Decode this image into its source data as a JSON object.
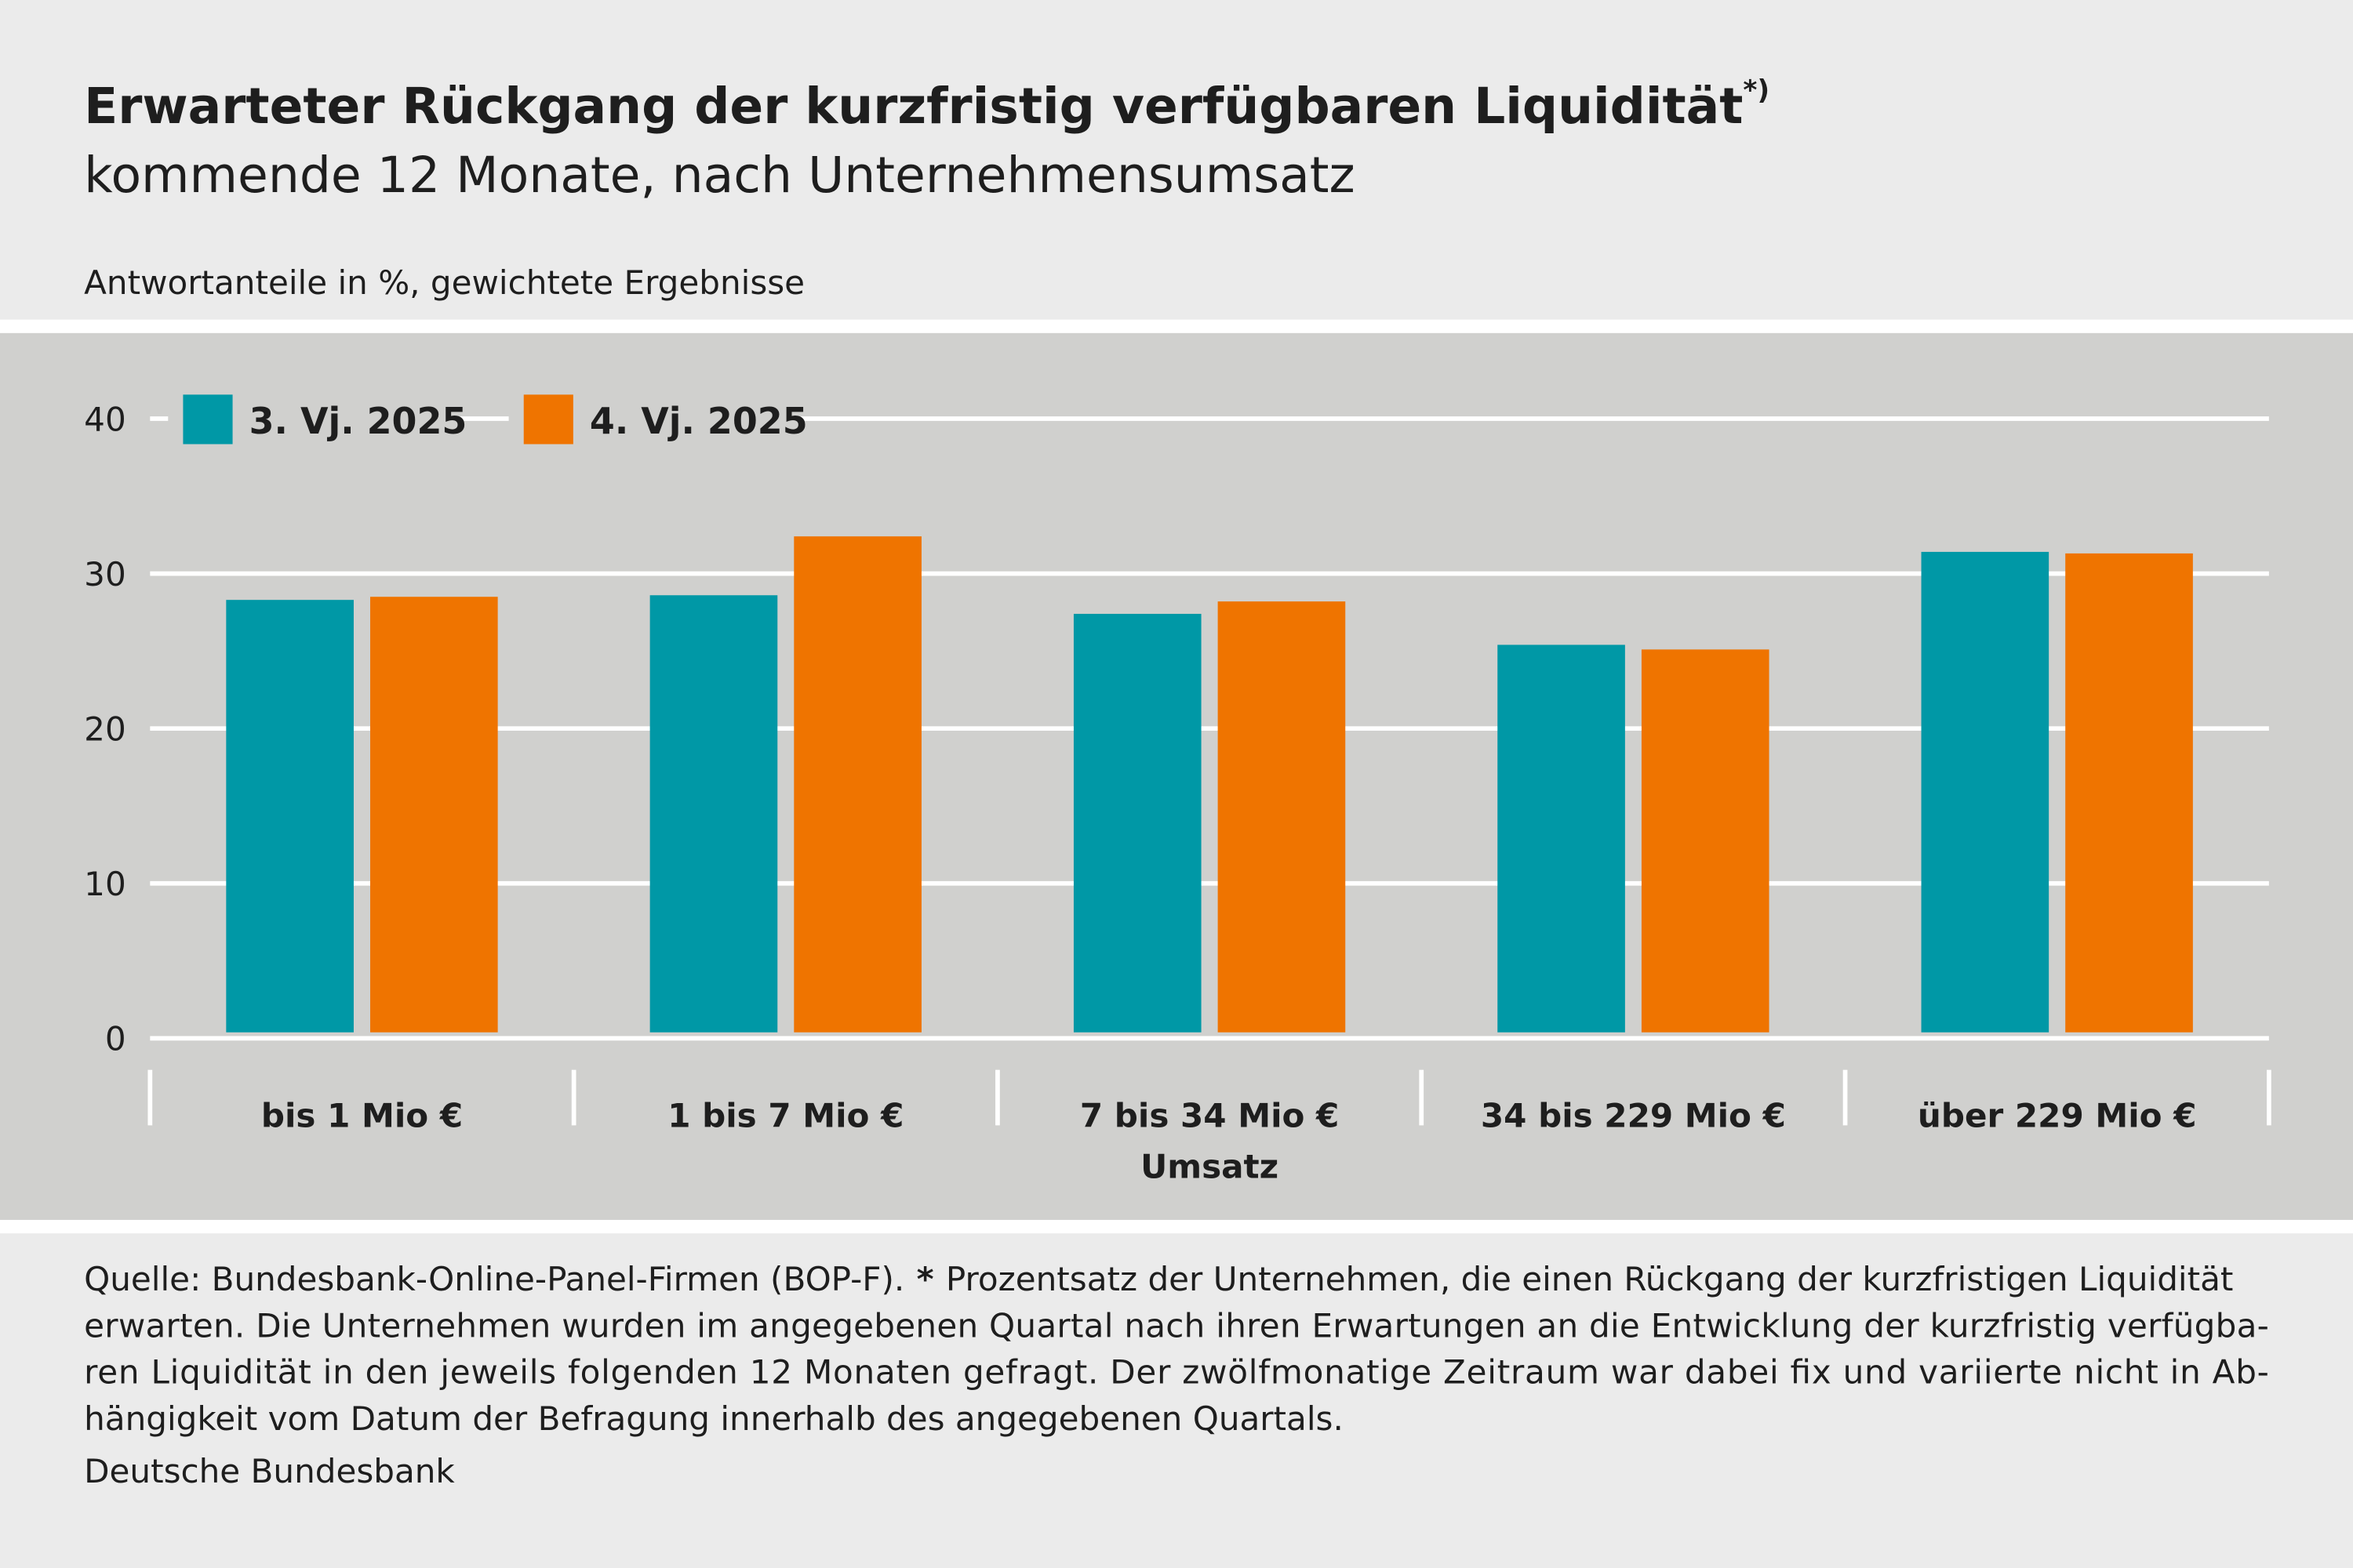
{
  "chart_data": {
    "type": "bar",
    "title": "Erwarteter Rückgang der kurzfristig verfügbaren Liquidität",
    "title_note": "*)",
    "subtitle": "kommende 12 Monate, nach Unternehmensumsatz",
    "y_label": "Antwortanteile in %, gewichtete Ergebnisse",
    "x_label": "Umsatz",
    "categories": [
      "bis 1 Mio €",
      "1 bis 7 Mio €",
      "7 bis 34 Mio €",
      "34 bis 229 Mio €",
      "über 229 Mio €"
    ],
    "series": [
      {
        "name": "3. Vj. 2025",
        "color": "#0098a6",
        "values": [
          28.3,
          28.6,
          27.4,
          25.4,
          31.4
        ]
      },
      {
        "name": "4. Vj. 2025",
        "color": "#ef7400",
        "values": [
          28.5,
          32.4,
          28.2,
          25.1,
          31.3
        ]
      }
    ],
    "ylim": [
      0,
      40
    ],
    "yticks": [
      0,
      10,
      20,
      30,
      40
    ],
    "grid": true,
    "legend": "top-left",
    "footnote": {
      "source": "Quelle: Bundesbank-Online-Panel-Firmen (BOP-F).",
      "asterisk": "*",
      "lines": [
        "Prozentsatz der Unternehmen, die einen Rückgang der kurzfristigen Liquidität",
        "erwarten. Die Unternehmen wurden im angegebenen Quartal nach ihren Erwartungen an die Entwicklung der kurzfristig verfügba-",
        "ren Liquidität in den jeweils folgenden 12 Monaten gefragt. Der zwölfmonatige Zeitraum war dabei fix und variierte nicht in Ab-",
        "hängigkeit vom Datum der Befragung innerhalb des angegebenen Quartals."
      ]
    },
    "publisher": "Deutsche Bundesbank"
  }
}
